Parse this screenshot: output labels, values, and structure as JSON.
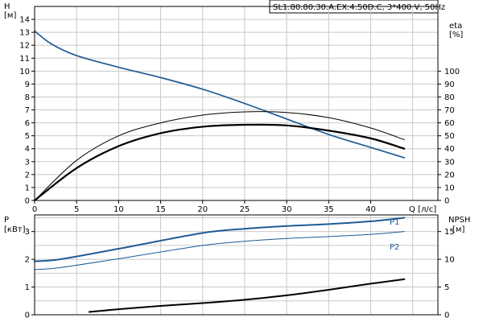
{
  "title": "SL1.80.80.30.A.EX.4.50D.C, 3*400 V, 50Hz",
  "chart_data": [
    {
      "type": "line",
      "panel": "top",
      "x_label": "Q [л/с]",
      "y_left_label": [
        "H",
        "[м]"
      ],
      "y_right_label": [
        "eta",
        "[%]"
      ],
      "x_ticks": [
        0,
        5,
        10,
        15,
        20,
        25,
        30,
        35,
        40
      ],
      "y_left_ticks": [
        0,
        1,
        2,
        3,
        4,
        5,
        6,
        7,
        8,
        9,
        10,
        11,
        12,
        13,
        14
      ],
      "y_right_ticks": [
        0,
        10,
        20,
        30,
        40,
        50,
        60,
        70,
        80,
        90,
        100
      ],
      "xlim": [
        0,
        48
      ],
      "ylim_left": [
        0,
        15
      ],
      "ylim_right": [
        0,
        150
      ],
      "grid": true,
      "series": [
        {
          "id": "H",
          "axis": "left",
          "color": "#1f5b96",
          "x": [
            0,
            2,
            5,
            10,
            15,
            20,
            25,
            30,
            35,
            40,
            44
          ],
          "y": [
            13.1,
            12.1,
            11.2,
            10.3,
            9.5,
            8.6,
            7.5,
            6.3,
            5.1,
            4.1,
            3.3
          ]
        },
        {
          "id": "eta-thin",
          "axis": "left",
          "color": "#000000",
          "x": [
            0,
            5,
            10,
            15,
            20,
            25,
            30,
            35,
            40,
            44
          ],
          "y": [
            0,
            3.1,
            5.0,
            6.0,
            6.6,
            6.85,
            6.8,
            6.4,
            5.6,
            4.7
          ]
        },
        {
          "id": "eta-thick",
          "axis": "left",
          "color": "#000000",
          "x": [
            0,
            5,
            10,
            15,
            20,
            25,
            30,
            35,
            40,
            44
          ],
          "y": [
            0,
            2.5,
            4.2,
            5.2,
            5.7,
            5.85,
            5.8,
            5.4,
            4.8,
            4.0
          ]
        }
      ]
    },
    {
      "type": "line",
      "panel": "bottom",
      "y_left_label": [
        "P",
        "[кВт]"
      ],
      "y_right_label": [
        "NPSH",
        "[м]"
      ],
      "y_left_ticks": [
        0,
        1,
        2,
        3
      ],
      "y_right_ticks": [
        0,
        5,
        10,
        15
      ],
      "xlim": [
        0,
        48
      ],
      "ylim_left": [
        0,
        3.6
      ],
      "ylim_right": [
        0,
        18
      ],
      "grid": true,
      "series": [
        {
          "id": "P1",
          "name": "P1",
          "axis": "left",
          "color": "#1f5b96",
          "x": [
            0,
            3,
            10,
            20,
            25,
            30,
            35,
            40,
            44
          ],
          "y": [
            1.93,
            2.0,
            2.38,
            2.95,
            3.1,
            3.2,
            3.27,
            3.37,
            3.5
          ]
        },
        {
          "id": "P2",
          "name": "P2",
          "axis": "left",
          "color": "#1f5b96",
          "x": [
            0,
            3,
            10,
            20,
            25,
            30,
            35,
            40,
            44
          ],
          "y": [
            1.63,
            1.7,
            2.02,
            2.5,
            2.65,
            2.75,
            2.82,
            2.9,
            3.0
          ]
        },
        {
          "id": "NPSH",
          "axis": "right",
          "color": "#000000",
          "x": [
            6.5,
            10,
            15,
            20,
            25,
            30,
            35,
            40,
            44
          ],
          "y": [
            0.5,
            1.0,
            1.6,
            2.1,
            2.7,
            3.5,
            4.5,
            5.6,
            6.4
          ]
        }
      ]
    }
  ]
}
